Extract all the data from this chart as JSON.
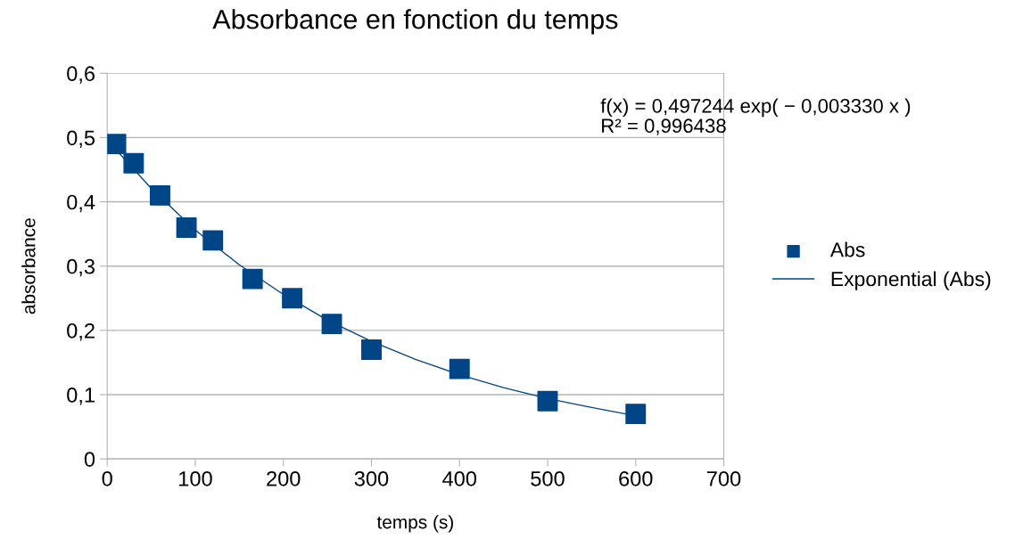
{
  "chart_data": {
    "type": "scatter",
    "title": "Absorbance en fonction du temps",
    "xlabel": "temps (s)",
    "ylabel": "absorbance",
    "x": [
      10,
      30,
      60,
      90,
      120,
      165,
      210,
      255,
      300,
      400,
      500,
      600
    ],
    "series": [
      {
        "name": "Abs",
        "color": "#004586",
        "marker": "square",
        "values": [
          0.49,
          0.46,
          0.41,
          0.36,
          0.34,
          0.28,
          0.25,
          0.21,
          0.17,
          0.14,
          0.09,
          0.07
        ]
      },
      {
        "name": "Exponential (Abs)",
        "type": "line",
        "color": "#004586",
        "marker": "none",
        "line_style": "solid",
        "x": [
          10,
          50,
          100,
          150,
          200,
          250,
          300,
          350,
          400,
          450,
          500,
          550,
          600
        ],
        "values": [
          0.481,
          0.421,
          0.356,
          0.302,
          0.256,
          0.216,
          0.183,
          0.155,
          0.131,
          0.111,
          0.094,
          0.08,
          0.067
        ]
      }
    ],
    "annotations": [
      "f(x) = 0,497244 exp( − 0,003330 x )\nR² = 0,996438"
    ],
    "xlim": [
      0,
      700
    ],
    "xticks": [
      0,
      100,
      200,
      300,
      400,
      500,
      600,
      700
    ],
    "ylim": [
      0,
      0.6
    ],
    "yticks": [
      {
        "value": 0,
        "label": "0"
      },
      {
        "value": 0.1,
        "label": "0,1"
      },
      {
        "value": 0.2,
        "label": "0,2"
      },
      {
        "value": 0.3,
        "label": "0,3"
      },
      {
        "value": 0.4,
        "label": "0,4"
      },
      {
        "value": 0.5,
        "label": "0,5"
      },
      {
        "value": 0.6,
        "label": "0,6"
      }
    ],
    "grid": "y",
    "legend": "right"
  }
}
